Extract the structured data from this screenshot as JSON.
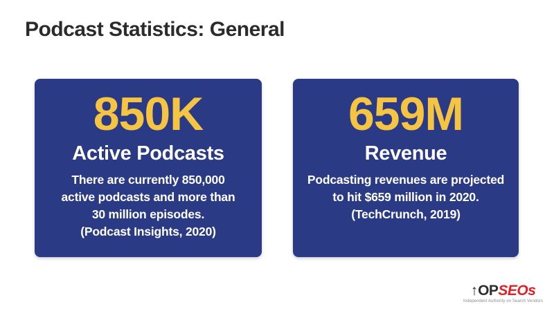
{
  "page": {
    "title": "Podcast Statistics: General"
  },
  "colors": {
    "card_bg": "#2b3a85",
    "accent_yellow": "#f6c443",
    "title_text": "#2b2b2b",
    "card_text": "#ffffff",
    "logo_red": "#e31e25",
    "logo_dark": "#2e2e2e",
    "tagline_gray": "#8a8a8a"
  },
  "cards": [
    {
      "stat": "850K",
      "label": "Active Podcasts",
      "description_lines": [
        "There are currently 850,000",
        "active podcasts and more than",
        "30 million episodes.",
        "(Podcast Insights, 2020)"
      ]
    },
    {
      "stat": "659M",
      "label": "Revenue",
      "description_lines": [
        "Podcasting revenues are projected",
        "to hit $659 million in 2020.",
        "(TechCrunch, 2019)"
      ]
    }
  ],
  "logo": {
    "arrow": "↑",
    "text_dark": "OP",
    "text_red": "SEOs",
    "tagline": "Independent Authority on Search Vendors"
  },
  "chart_data": {
    "type": "table",
    "title": "Podcast Statistics: General",
    "series": [
      {
        "name": "Active Podcasts",
        "display_value": "850K",
        "value": 850000,
        "note": "There are currently 850,000 active podcasts and more than 30 million episodes.",
        "source": "Podcast Insights, 2020"
      },
      {
        "name": "Revenue",
        "display_value": "659M",
        "value": 659000000,
        "note": "Podcasting revenues are projected to hit $659 million in 2020.",
        "source": "TechCrunch, 2019"
      }
    ]
  }
}
